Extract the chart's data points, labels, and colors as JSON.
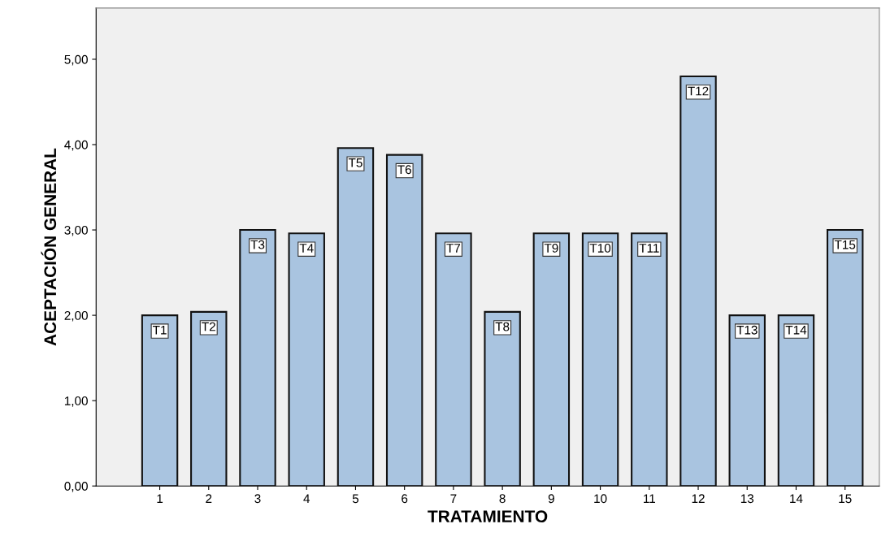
{
  "chart_data": {
    "type": "bar",
    "xlabel": "TRATAMIENTO",
    "ylabel": "ACEPTACIÓN GENERAL",
    "categories": [
      "1",
      "2",
      "3",
      "4",
      "5",
      "6",
      "7",
      "8",
      "9",
      "10",
      "11",
      "12",
      "13",
      "14",
      "15"
    ],
    "values": [
      2.0,
      2.04,
      3.0,
      2.96,
      3.96,
      3.88,
      2.96,
      2.04,
      2.96,
      2.96,
      2.96,
      4.8,
      2.0,
      2.0,
      3.0
    ],
    "value_labels": [
      "T1",
      "T2",
      "T3",
      "T4",
      "T5",
      "T6",
      "T7",
      "T8",
      "T9",
      "T10",
      "T11",
      "T12",
      "T13",
      "T14",
      "T15"
    ],
    "color": "#a9c4e0",
    "ylim": [
      0,
      5.6
    ],
    "yticks": [
      {
        "value": 0,
        "label": "0,00"
      },
      {
        "value": 1,
        "label": "1,00"
      },
      {
        "value": 2,
        "label": "2,00"
      },
      {
        "value": 3,
        "label": "3,00"
      },
      {
        "value": 4,
        "label": "4,00"
      },
      {
        "value": 5,
        "label": "5,00"
      }
    ],
    "grid": false
  }
}
